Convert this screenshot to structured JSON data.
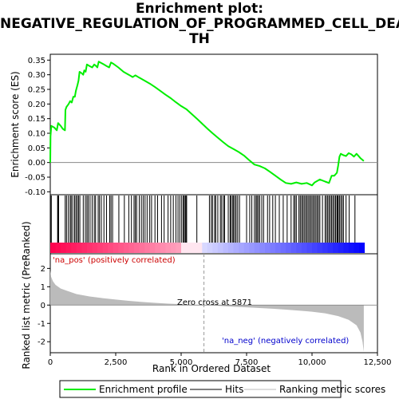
{
  "title_lines": [
    "Enrichment plot:",
    "NEGATIVE_REGULATION_OF_PROGRAMMED_CELL_DEA",
    "TH"
  ],
  "chart_data": [
    {
      "type": "line",
      "panel": "enrichment-score",
      "ylabel": "Enrichment score (ES)",
      "ylim": [
        -0.11,
        0.37
      ],
      "yticks": [
        -0.1,
        -0.05,
        0.0,
        0.05,
        0.1,
        0.15,
        0.2,
        0.25,
        0.3,
        0.35
      ],
      "ytick_labels": [
        "-0.10",
        "-0.05",
        "0.00",
        "0.05",
        "0.10",
        "0.15",
        "0.20",
        "0.25",
        "0.30",
        "0.35"
      ],
      "xlim": [
        0,
        12500
      ],
      "color": "#00ee00",
      "series": [
        {
          "name": "Enrichment profile",
          "points": [
            [
              0,
              0.0
            ],
            [
              10,
              0.09
            ],
            [
              40,
              0.125
            ],
            [
              150,
              0.12
            ],
            [
              250,
              0.11
            ],
            [
              300,
              0.135
            ],
            [
              400,
              0.125
            ],
            [
              480,
              0.115
            ],
            [
              560,
              0.11
            ],
            [
              580,
              0.18
            ],
            [
              620,
              0.19
            ],
            [
              700,
              0.2
            ],
            [
              760,
              0.21
            ],
            [
              820,
              0.205
            ],
            [
              880,
              0.225
            ],
            [
              940,
              0.225
            ],
            [
              980,
              0.245
            ],
            [
              1040,
              0.265
            ],
            [
              1080,
              0.28
            ],
            [
              1120,
              0.31
            ],
            [
              1200,
              0.305
            ],
            [
              1260,
              0.3
            ],
            [
              1300,
              0.315
            ],
            [
              1350,
              0.31
            ],
            [
              1400,
              0.335
            ],
            [
              1500,
              0.33
            ],
            [
              1600,
              0.325
            ],
            [
              1680,
              0.335
            ],
            [
              1750,
              0.33
            ],
            [
              1800,
              0.325
            ],
            [
              1850,
              0.345
            ],
            [
              1950,
              0.34
            ],
            [
              2050,
              0.335
            ],
            [
              2150,
              0.33
            ],
            [
              2250,
              0.325
            ],
            [
              2320,
              0.342
            ],
            [
              2400,
              0.338
            ],
            [
              2600,
              0.325
            ],
            [
              2800,
              0.31
            ],
            [
              3000,
              0.3
            ],
            [
              3150,
              0.292
            ],
            [
              3250,
              0.298
            ],
            [
              3400,
              0.29
            ],
            [
              3600,
              0.28
            ],
            [
              3800,
              0.27
            ],
            [
              4000,
              0.258
            ],
            [
              4200,
              0.245
            ],
            [
              4400,
              0.232
            ],
            [
              4600,
              0.22
            ],
            [
              4800,
              0.206
            ],
            [
              5000,
              0.193
            ],
            [
              5200,
              0.182
            ],
            [
              5400,
              0.166
            ],
            [
              5600,
              0.15
            ],
            [
              5800,
              0.133
            ],
            [
              6000,
              0.116
            ],
            [
              6200,
              0.1
            ],
            [
              6400,
              0.085
            ],
            [
              6600,
              0.07
            ],
            [
              6800,
              0.056
            ],
            [
              7000,
              0.046
            ],
            [
              7200,
              0.036
            ],
            [
              7400,
              0.024
            ],
            [
              7600,
              0.008
            ],
            [
              7800,
              -0.007
            ],
            [
              8000,
              -0.012
            ],
            [
              8200,
              -0.02
            ],
            [
              8400,
              -0.032
            ],
            [
              8600,
              -0.045
            ],
            [
              8800,
              -0.058
            ],
            [
              9000,
              -0.07
            ],
            [
              9200,
              -0.073
            ],
            [
              9400,
              -0.068
            ],
            [
              9600,
              -0.073
            ],
            [
              9800,
              -0.07
            ],
            [
              10000,
              -0.078
            ],
            [
              10100,
              -0.068
            ],
            [
              10300,
              -0.058
            ],
            [
              10500,
              -0.065
            ],
            [
              10650,
              -0.07
            ],
            [
              10750,
              -0.045
            ],
            [
              10850,
              -0.045
            ],
            [
              10950,
              -0.035
            ],
            [
              11000,
              -0.01
            ],
            [
              11050,
              0.02
            ],
            [
              11100,
              0.03
            ],
            [
              11200,
              0.025
            ],
            [
              11300,
              0.022
            ],
            [
              11400,
              0.032
            ],
            [
              11500,
              0.028
            ],
            [
              11600,
              0.02
            ],
            [
              11700,
              0.03
            ],
            [
              11850,
              0.015
            ],
            [
              11980,
              0.005
            ]
          ]
        }
      ]
    },
    {
      "type": "bar",
      "panel": "hits",
      "series": [
        {
          "name": "Hits",
          "x": [
            10,
            40,
            280,
            300,
            320,
            570,
            620,
            690,
            760,
            800,
            860,
            930,
            980,
            1030,
            1080,
            1130,
            1260,
            1340,
            1400,
            1450,
            1520,
            1600,
            1680,
            1730,
            1830,
            1880,
            1950,
            2050,
            2150,
            2270,
            2320,
            2380,
            2620,
            2830,
            3000,
            3100,
            3200,
            3250,
            3300,
            3400,
            3480,
            3550,
            3620,
            3700,
            3800,
            3870,
            4000,
            4100,
            4250,
            4350,
            4500,
            4600,
            4700,
            4800,
            4880,
            4950,
            5020,
            5080,
            5100,
            5150,
            5180,
            5210,
            5600,
            6080,
            6150,
            6200,
            6280,
            6320,
            6400,
            6500,
            6550,
            6620,
            6660,
            6800,
            6870,
            6900,
            6960,
            7000,
            7050,
            7100,
            7160,
            7230,
            7500,
            7620,
            7700,
            7800,
            7860,
            7900,
            7950,
            8000,
            8080,
            8150,
            8300,
            8380,
            8500,
            8600,
            8750,
            8900,
            9050,
            9200,
            9300,
            9350,
            9400,
            9500,
            9550,
            9600,
            9650,
            9700,
            9750,
            9800,
            9850,
            9900,
            9950,
            10000,
            10050,
            10100,
            10150,
            10200,
            10250,
            10300,
            10400,
            10500,
            10550,
            10600,
            10650,
            10700,
            10750,
            10800,
            10850,
            10900,
            10950,
            10980,
            11000,
            11050,
            11100,
            11150,
            11200,
            11300,
            11420,
            11640
          ]
        }
      ]
    },
    {
      "type": "area",
      "panel": "ranked-metric",
      "ylabel": "Ranked list metric (PreRanked)",
      "xlabel": "Rank in Ordered Dataset",
      "ylim": [
        -2.6,
        2.8
      ],
      "yticks": [
        -2,
        -1,
        0,
        1,
        2
      ],
      "ytick_labels": [
        "-2",
        "-1",
        "0",
        "1",
        "2"
      ],
      "xlim": [
        0,
        12500
      ],
      "xticks": [
        0,
        2500,
        5000,
        7500,
        10000,
        12500
      ],
      "xtick_labels": [
        "0",
        "2,500",
        "5,000",
        "7,500",
        "10,000",
        "12,500"
      ],
      "zero_cross": 5871,
      "zero_cross_label": "Zero cross at 5871",
      "pos_label": "'na_pos' (positively correlated)",
      "neg_label": "'na_neg' (negatively correlated)",
      "pos_label_color": "#cc0000",
      "neg_label_color": "#0000cc",
      "fill_color": "#bbbbbb",
      "series": [
        {
          "name": "Ranking metric scores",
          "points": [
            [
              0,
              1.9
            ],
            [
              30,
              1.55
            ],
            [
              100,
              1.3
            ],
            [
              200,
              1.1
            ],
            [
              400,
              0.9
            ],
            [
              700,
              0.75
            ],
            [
              1000,
              0.6
            ],
            [
              1500,
              0.47
            ],
            [
              2000,
              0.38
            ],
            [
              2500,
              0.3
            ],
            [
              3000,
              0.23
            ],
            [
              3500,
              0.17
            ],
            [
              4000,
              0.12
            ],
            [
              4500,
              0.08
            ],
            [
              5000,
              0.05
            ],
            [
              5500,
              0.02
            ],
            [
              5871,
              0.0
            ],
            [
              6500,
              -0.05
            ],
            [
              7000,
              -0.09
            ],
            [
              7500,
              -0.12
            ],
            [
              8000,
              -0.16
            ],
            [
              8500,
              -0.2
            ],
            [
              9000,
              -0.25
            ],
            [
              9500,
              -0.3
            ],
            [
              10000,
              -0.36
            ],
            [
              10500,
              -0.45
            ],
            [
              11000,
              -0.6
            ],
            [
              11400,
              -0.8
            ],
            [
              11700,
              -1.1
            ],
            [
              11850,
              -1.5
            ],
            [
              11930,
              -2.0
            ],
            [
              11980,
              -2.55
            ]
          ]
        }
      ]
    },
    {
      "type": "legend",
      "panel": "legend",
      "items": [
        {
          "name": "Enrichment profile",
          "color": "#00ee00"
        },
        {
          "name": "Hits",
          "color": "#000000"
        },
        {
          "name": "Ranking metric scores",
          "color": "#bbbbbb"
        }
      ]
    }
  ]
}
